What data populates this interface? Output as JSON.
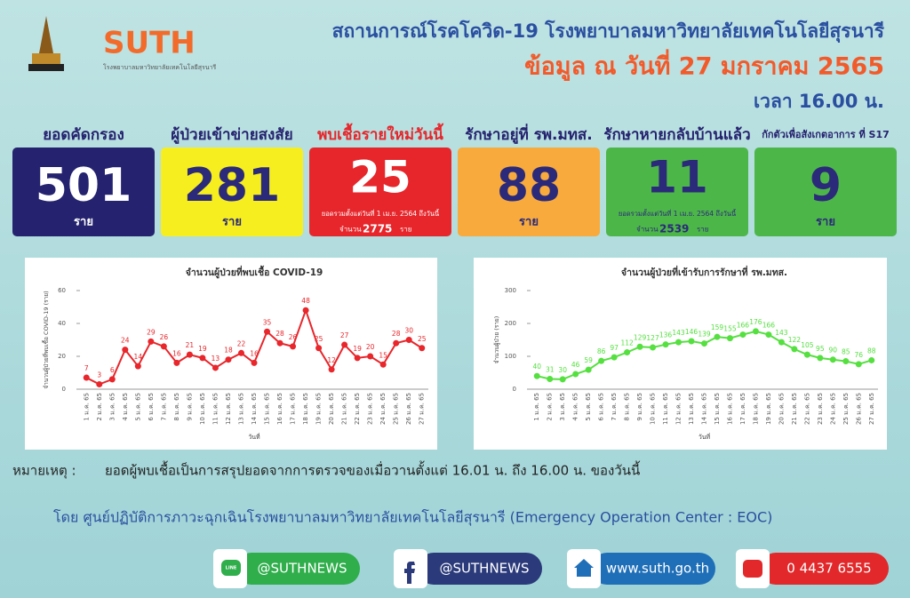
{
  "header": {
    "logo_text": "SUTH",
    "logo_subtitle": "โรงพยาบาลมหาวิทยาลัยเทคโนโลยีสุรนารี",
    "title": "สถานการณ์โรคโควิด-19 โรงพยาบาลมหาวิทยาลัยเทคโนโลยีสุรนารี",
    "date": "ข้อมูล ณ วันที่ 27 มกราคม 2565",
    "time": "เวลา 16.00 น."
  },
  "boxes": [
    {
      "label": "ยอดคัดกรอง",
      "value": 501,
      "unit": "ราย",
      "color": "#25226f",
      "text_color": "#ffffff",
      "label_color": "#25226f"
    },
    {
      "label": "ผู้ป่วยเข้าข่ายสงสัย",
      "value": 281,
      "unit": "ราย",
      "color": "#f6ee1f",
      "text_color": "#2b2a7a",
      "label_color": "#25226f"
    },
    {
      "label": "พบเชื้อรายใหม่วันนี้",
      "value": 25,
      "note": "ยอดรวมตั้งแต่วันที่ 1 เม.ย. 2564 ถึงวันนี้",
      "count_prefix": "จำนวน",
      "count": 2775,
      "count_unit": "ราย",
      "color": "#e6262b",
      "text_color": "#ffffff",
      "label_color": "#e6262b"
    },
    {
      "label": "รักษาอยู่ที่ รพ.มทส.",
      "value": 88,
      "unit": "ราย",
      "color": "#f8aa3c",
      "text_color": "#2b2a7a",
      "label_color": "#25226f"
    },
    {
      "label": "รักษาหายกลับบ้านแล้ว",
      "value": 11,
      "note": "ยอดรวมตั้งแต่วันที่ 1 เม.ย. 2564 ถึงวันนี้",
      "count_prefix": "จำนวน",
      "count": 2539,
      "count_unit": "ราย",
      "color": "#4db649",
      "text_color": "#2b2a7a",
      "label_color": "#25226f"
    },
    {
      "label": "กักตัวเพื่อสังเกตอาการ ที่ S17",
      "value": 9,
      "unit": "ราย",
      "color": "#4db649",
      "text_color": "#2b2a7a",
      "label_color": "#25226f"
    }
  ],
  "chart_data": [
    {
      "type": "line",
      "title": "จำนวนผู้ป่วยที่พบเชื้อ COVID-19",
      "x_label": "วันที่",
      "y_label": "จำนวนผู้ป่วยที่พบเชื้อ COVID-19 (ราย)",
      "categories": [
        "1 ม.ค. 65",
        "2 ม.ค. 65",
        "3 ม.ค. 65",
        "4 ม.ค. 65",
        "5 ม.ค. 65",
        "6 ม.ค. 65",
        "7 ม.ค. 65",
        "8 ม.ค. 65",
        "9 ม.ค. 65",
        "10 ม.ค. 65",
        "11 ม.ค. 65",
        "12 ม.ค. 65",
        "13 ม.ค. 65",
        "14 ม.ค. 65",
        "15 ม.ค. 65",
        "16 ม.ค. 65",
        "17 ม.ค. 65",
        "18 ม.ค. 65",
        "19 ม.ค. 65",
        "20 ม.ค. 65",
        "21 ม.ค. 65",
        "22 ม.ค. 65",
        "23 ม.ค. 65",
        "24 ม.ค. 65",
        "25 ม.ค. 65",
        "26 ม.ค. 65",
        "27 ม.ค. 65"
      ],
      "values": [
        7,
        3,
        6,
        24,
        14,
        29,
        26,
        16,
        21,
        19,
        13,
        18,
        22,
        16,
        35,
        28,
        26,
        48,
        25,
        12,
        27,
        19,
        20,
        15,
        28,
        30,
        25
      ],
      "color": "#e8262b",
      "ylim": [
        0,
        60
      ],
      "yticks": [
        0,
        20,
        40,
        60
      ]
    },
    {
      "type": "line",
      "title": "จำนวนผู้ป่วยที่เข้ารับการรักษาที่ รพ.มทส.",
      "x_label": "วันที่",
      "y_label": "จำนวนผู้ป่วย (ราย)",
      "categories": [
        "1 ม.ค. 65",
        "2 ม.ค. 65",
        "3 ม.ค. 65",
        "4 ม.ค. 65",
        "5 ม.ค. 65",
        "6 ม.ค. 65",
        "7 ม.ค. 65",
        "8 ม.ค. 65",
        "9 ม.ค. 65",
        "10 ม.ค. 65",
        "11 ม.ค. 65",
        "12 ม.ค. 65",
        "13 ม.ค. 65",
        "14 ม.ค. 65",
        "15 ม.ค. 65",
        "16 ม.ค. 65",
        "17 ม.ค. 65",
        "18 ม.ค. 65",
        "19 ม.ค. 65",
        "20 ม.ค. 65",
        "21 ม.ค. 65",
        "22 ม.ค. 65",
        "23 ม.ค. 65",
        "24 ม.ค. 65",
        "25 ม.ค. 65",
        "26 ม.ค. 65",
        "27 ม.ค. 65"
      ],
      "values": [
        40,
        31,
        30,
        46,
        59,
        86,
        97,
        112,
        129,
        127,
        136,
        143,
        146,
        139,
        159,
        155,
        166,
        176,
        166,
        143,
        122,
        105,
        95,
        90,
        85,
        76,
        88
      ],
      "color": "#55e040",
      "ylim": [
        0,
        300
      ],
      "yticks": [
        0,
        100,
        200,
        300
      ]
    }
  ],
  "note": {
    "label": "หมายเหตุ :",
    "text": "ยอดผู้พบเชื้อเป็นการสรุปยอดจากการตรวจของเมื่อวานตั้งแต่ 16.01 น. ถึง 16.00 น. ของวันนี้"
  },
  "footer": "โดย ศูนย์ปฏิบัติการภาวะฉุกเฉินโรงพยาบาลมหาวิทยาลัยเทคโนโลยีสุรนารี (Emergency Operation  Center : EOC)",
  "contacts": [
    {
      "icon": "LINE",
      "text": "@SUTHNEWS"
    },
    {
      "text": "@SUTHNEWS"
    },
    {
      "text": "www.suth.go.th"
    },
    {
      "text": "0 4437 6555"
    }
  ]
}
